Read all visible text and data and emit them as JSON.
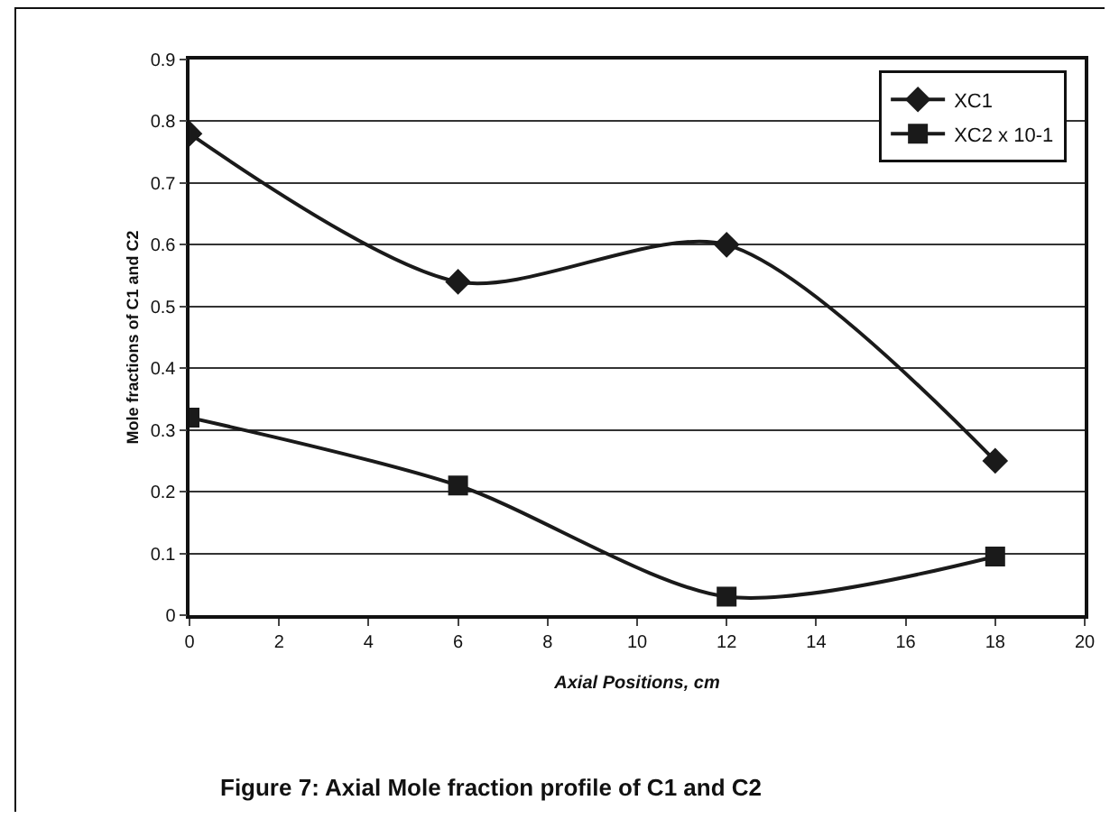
{
  "chart_data": {
    "type": "line",
    "xlabel": "Axial Positions, cm",
    "ylabel": "Mole fractions of C1 and C2",
    "annotations": [
      "Figure 7: Axial Mole fraction profile of C1 and C2"
    ],
    "x": [
      0,
      6,
      12,
      18
    ],
    "series": [
      {
        "name": "XC1",
        "color": "#1a1a1a",
        "marker": "diamond",
        "values": [
          0.78,
          0.54,
          0.6,
          0.25
        ]
      },
      {
        "name": "XC2 x 10-1",
        "color": "#1a1a1a",
        "marker": "square",
        "values": [
          0.32,
          0.21,
          0.03,
          0.095
        ]
      }
    ],
    "xlim": [
      0,
      20
    ],
    "xticks": [
      0,
      2,
      4,
      6,
      8,
      10,
      12,
      14,
      16,
      18,
      20
    ],
    "ylim": [
      0,
      0.9
    ],
    "yticks": [
      0,
      0.1,
      0.2,
      0.3,
      0.4,
      0.5,
      0.6,
      0.7,
      0.8,
      0.9
    ],
    "grid": "y",
    "legend": "top right",
    "line_style": "solid"
  }
}
